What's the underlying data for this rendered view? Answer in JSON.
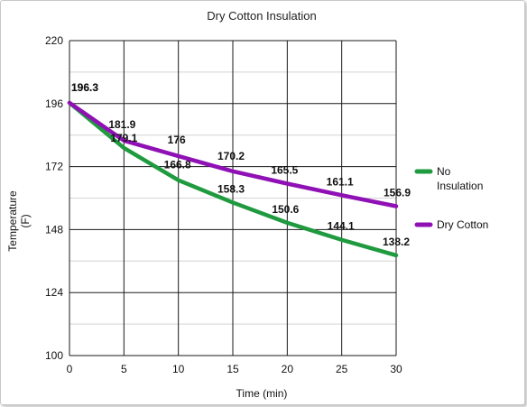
{
  "chart_data": {
    "type": "line",
    "title": "Dry Cotton Insulation",
    "xlabel": "Time (min)",
    "ylabel_line1": "Temperature",
    "ylabel_line2": "(F)",
    "x": [
      0,
      5,
      10,
      15,
      20,
      25,
      30
    ],
    "xlim": [
      0,
      30
    ],
    "ylim": [
      100,
      220
    ],
    "x_ticks": [
      "0",
      "5",
      "10",
      "15",
      "20",
      "25",
      "30"
    ],
    "y_ticks": [
      "100",
      "124",
      "148",
      "172",
      "196",
      "220"
    ],
    "y_tick_values": [
      100,
      124,
      148,
      172,
      196,
      220
    ],
    "y_minor_grid": [
      112,
      136,
      160,
      184,
      208
    ],
    "grid": true,
    "legend_position": "right",
    "series": [
      {
        "name": "No Insulation",
        "color": "#1f9a3f",
        "values": [
          196.3,
          179.1,
          166.8,
          158.3,
          150.6,
          144.1,
          138.2
        ],
        "labels": [
          "196.3",
          "179.1",
          "166.8",
          "158.3",
          "150.6",
          "144.1",
          "138.2"
        ]
      },
      {
        "name": "Dry Cotton",
        "color": "#8f11b5",
        "values": [
          196.3,
          181.9,
          176,
          170.2,
          165.5,
          161.1,
          156.9
        ],
        "labels": [
          "196.3",
          "181.9",
          "176",
          "170.2",
          "165.5",
          "161.1",
          "156.9"
        ]
      }
    ],
    "legend": {
      "series0_line1": "No",
      "series0_line2": "Insulation",
      "series1_line1": "Dry Cotton"
    }
  }
}
